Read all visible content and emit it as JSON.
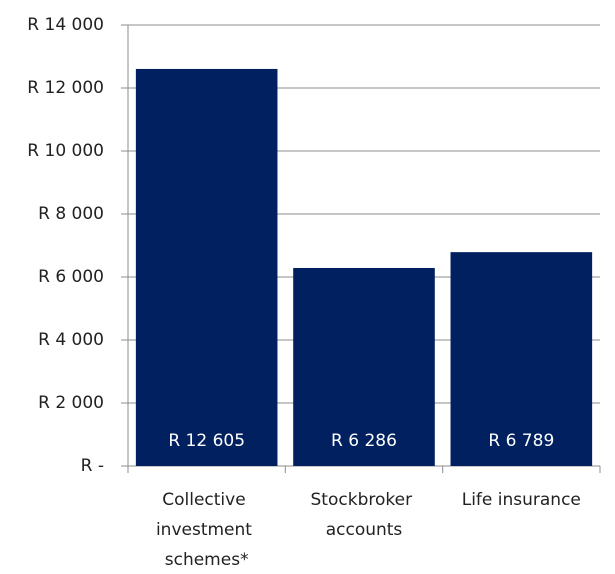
{
  "chart_data": {
    "type": "bar",
    "categories": [
      "Collective investment schemes*",
      "Stockbroker accounts",
      "Life insurance"
    ],
    "values": [
      12605,
      6286,
      6789
    ],
    "value_labels": [
      "R 12 605",
      "R 6 286",
      "R 6 789"
    ],
    "color": "#002060",
    "ylim": [
      0,
      14000
    ],
    "yticks": [
      {
        "value": 0,
        "label": "R -"
      },
      {
        "value": 2000,
        "label": "R 2 000"
      },
      {
        "value": 4000,
        "label": "R 4 000"
      },
      {
        "value": 6000,
        "label": "R 6 000"
      },
      {
        "value": 8000,
        "label": "R 8 000"
      },
      {
        "value": 10000,
        "label": "R 10 000"
      },
      {
        "value": 12000,
        "label": "R 12 000"
      },
      {
        "value": 14000,
        "label": "R 14 000"
      }
    ],
    "grid": true
  }
}
